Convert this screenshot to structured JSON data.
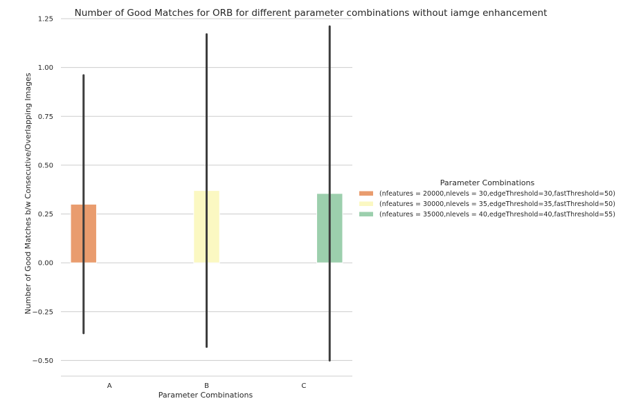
{
  "chart_data": {
    "type": "bar",
    "title": "Number of Good Matches for ORB for different parameter combinations without iamge enhancement",
    "xlabel": "Parameter Combinations",
    "ylabel": "Number of Good Matches b/w Consecutive/Overlapping Images",
    "categories": [
      "A",
      "B",
      "C"
    ],
    "ylim": [
      -0.58,
      1.25
    ],
    "yticks": [
      1.25,
      1.0,
      0.75,
      0.5,
      0.25,
      0.0,
      -0.25,
      -0.5
    ],
    "ytick_labels": [
      "1.25",
      "1.00",
      "0.75",
      "0.50",
      "0.25",
      "0.00",
      "−0.25",
      "−0.50"
    ],
    "grid": true,
    "legend": {
      "title": "Parameter Combinations",
      "placement": "center-right"
    },
    "series": [
      {
        "name": "(nfeatures = 20000,nlevels = 30,edgeThreshold=30,fastThreshold=50)",
        "category": "A",
        "value": 0.3,
        "err_low": -0.36,
        "err_high": 0.96,
        "color": "#e99c6e"
      },
      {
        "name": "(nfeatures = 30000,nlevels = 35,edgeThreshold=35,fastThreshold=50)",
        "category": "B",
        "value": 0.37,
        "err_low": -0.43,
        "err_high": 1.17,
        "color": "#fbf8c2"
      },
      {
        "name": "(nfeatures = 35000,nlevels = 40,edgeThreshold=40,fastThreshold=55)",
        "category": "C",
        "value": 0.355,
        "err_low": -0.5,
        "err_high": 1.21,
        "color": "#9ccfad"
      }
    ]
  }
}
